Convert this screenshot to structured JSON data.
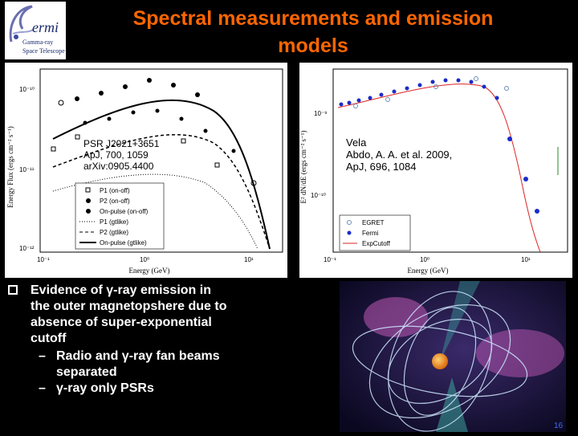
{
  "slide": {
    "title_line1": "Spectral measurements and emission",
    "title_line2": "models",
    "page_number": "16"
  },
  "logo": {
    "name": "ermi",
    "line1": "Gamma-ray",
    "line2": "Space Telescope"
  },
  "left_plot": {
    "annotation": [
      "PSR J2021+3651",
      "ApJ, 700, 1059",
      "arXiv:0905.4400"
    ],
    "ylabel": "Energy Flux (ergs cm⁻² s⁻¹)",
    "xlabel": "Energy (GeV)",
    "legend": [
      "P1 (on-off)",
      "P2 (on-off)",
      "On-pulse (on-off)",
      "P1 (gtlike)",
      "P2 (gtlike)",
      "On-pulse (gtlike)"
    ],
    "y_ticks": [
      "10⁻¹⁰",
      "10⁻¹¹",
      "10⁻¹²"
    ],
    "x_ticks": [
      "10⁻¹",
      "10⁰",
      "10¹"
    ]
  },
  "right_plot": {
    "annotation": [
      "Vela",
      "Abdo, A. A. et al. 2009,",
      "ApJ, 696, 1084"
    ],
    "ylabel": "E² dN/dE (ergs cm⁻² s⁻¹)",
    "xlabel": "Energy (GeV)",
    "legend": [
      "EGRET",
      "Fermi",
      "ExpCutoff"
    ],
    "y_ticks": [
      "10⁻⁹",
      "10⁻¹⁰"
    ],
    "x_ticks": [
      "10⁻¹",
      "10⁰",
      "10¹"
    ]
  },
  "bullets": {
    "main_prefix": "Evidence of ",
    "gamma": "γ",
    "main_rest_line1": "-ray emission in",
    "main_line2": "the outer magnetopshere due to",
    "main_line3": "absence of super-exponential",
    "main_line4": "cutoff",
    "sub1_prefix": "Radio and ",
    "sub1_rest": "-ray fan beams",
    "sub1_line2": "separated",
    "sub2_rest": "-ray only PSRs",
    "dash": "–"
  }
}
